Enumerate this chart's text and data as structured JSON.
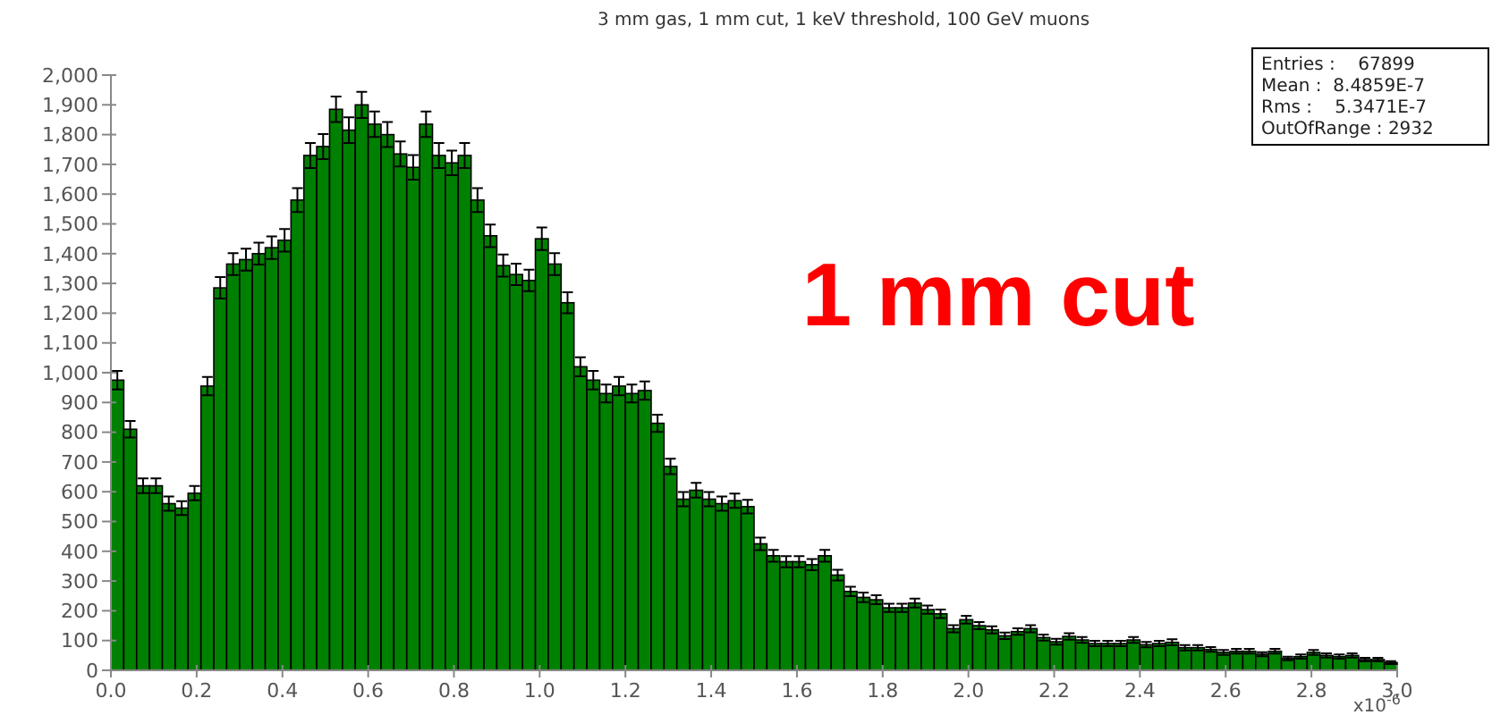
{
  "chart_data": {
    "type": "histogram",
    "title": "3 mm gas, 1 mm cut, 1 keV threshold, 100 GeV muons",
    "xlabel": "x10$^{-6}$",
    "annotations": [
      "1 mm cut",
      "Entries :    67899",
      "Mean :  8.4859E-7",
      "Rms :    5.3471E-7",
      "OutOfRange : 2932"
    ],
    "color": "#008000",
    "bins": [
      0,
      0.03,
      0.06,
      0.09,
      0.12,
      0.15,
      0.18,
      0.21,
      0.24,
      0.27,
      0.3,
      0.33,
      0.36,
      0.39,
      0.42,
      0.45,
      0.48,
      0.51,
      0.54,
      0.57,
      0.6,
      0.63,
      0.66,
      0.69,
      0.72,
      0.75,
      0.78,
      0.81,
      0.84,
      0.87,
      0.9,
      0.93,
      0.96,
      0.99,
      1.02,
      1.05,
      1.08,
      1.11,
      1.14,
      1.17,
      1.2,
      1.23,
      1.26,
      1.29,
      1.32,
      1.35,
      1.38,
      1.41,
      1.44,
      1.47,
      1.5,
      1.53,
      1.56,
      1.59,
      1.62,
      1.65,
      1.68,
      1.71,
      1.74,
      1.77,
      1.8,
      1.83,
      1.86,
      1.89,
      1.92,
      1.95,
      1.98,
      2.01,
      2.04,
      2.07,
      2.1,
      2.13,
      2.16,
      2.19,
      2.22,
      2.25,
      2.28,
      2.31,
      2.34,
      2.37,
      2.4,
      2.43,
      2.46,
      2.49,
      2.52,
      2.55,
      2.58,
      2.61,
      2.64,
      2.67,
      2.7,
      2.73,
      2.76,
      2.79,
      2.82,
      2.85,
      2.88,
      2.91,
      2.94,
      2.97,
      3.0
    ],
    "values": [
      975,
      810,
      620,
      620,
      560,
      545,
      595,
      955,
      1285,
      1365,
      1380,
      1400,
      1420,
      1445,
      1580,
      1730,
      1760,
      1885,
      1815,
      1900,
      1835,
      1800,
      1735,
      1690,
      1835,
      1730,
      1705,
      1730,
      1580,
      1460,
      1360,
      1330,
      1310,
      1450,
      1365,
      1235,
      1020,
      975,
      930,
      955,
      930,
      940,
      830,
      685,
      575,
      605,
      575,
      560,
      570,
      550,
      425,
      385,
      365,
      365,
      355,
      385,
      320,
      265,
      245,
      237,
      210,
      210,
      226,
      204,
      190,
      140,
      170,
      150,
      136,
      116,
      130,
      140,
      110,
      96,
      114,
      102,
      90,
      90,
      90,
      102,
      86,
      90,
      94,
      76,
      76,
      70,
      60,
      64,
      64,
      54,
      64,
      40,
      46,
      60,
      50,
      46,
      50,
      36,
      36,
      26
    ],
    "errors": [
      31,
      28,
      25,
      25,
      24,
      23,
      24,
      31,
      36,
      37,
      37,
      37,
      38,
      38,
      40,
      42,
      42,
      43,
      43,
      44,
      43,
      42,
      42,
      41,
      43,
      42,
      41,
      42,
      40,
      38,
      37,
      36,
      36,
      38,
      37,
      35,
      32,
      31,
      30,
      31,
      30,
      31,
      29,
      26,
      24,
      25,
      24,
      24,
      24,
      23,
      21,
      20,
      19,
      19,
      19,
      20,
      18,
      16,
      16,
      15,
      14,
      14,
      15,
      14,
      14,
      12,
      13,
      12,
      12,
      11,
      11,
      12,
      10,
      10,
      11,
      10,
      9,
      9,
      9,
      10,
      9,
      9,
      10,
      9,
      9,
      8,
      8,
      8,
      8,
      7,
      8,
      6,
      7,
      8,
      7,
      7,
      7,
      6,
      6,
      5
    ],
    "xlim": [
      0,
      3.0
    ],
    "xticks": [
      {
        "value": 0,
        "label": "0.0"
      },
      {
        "value": 0.2,
        "label": "0.2"
      },
      {
        "value": 0.4,
        "label": "0.4"
      },
      {
        "value": 0.6,
        "label": "0.6"
      },
      {
        "value": 0.8,
        "label": "0.8"
      },
      {
        "value": 1.0,
        "label": "1.0"
      },
      {
        "value": 1.2,
        "label": "1.2"
      },
      {
        "value": 1.4,
        "label": "1.4"
      },
      {
        "value": 1.6,
        "label": "1.6"
      },
      {
        "value": 1.8,
        "label": "1.8"
      },
      {
        "value": 2.0,
        "label": "2.0"
      },
      {
        "value": 2.2,
        "label": "2.2"
      },
      {
        "value": 2.4,
        "label": "2.4"
      },
      {
        "value": 2.6,
        "label": "2.6"
      },
      {
        "value": 2.8,
        "label": "2.8"
      },
      {
        "value": 3.0,
        "label": "3.0"
      }
    ],
    "ylim": [
      0,
      2000
    ],
    "yticks": [
      0,
      100,
      200,
      300,
      400,
      500,
      600,
      700,
      800,
      900,
      {
        "value": 1000,
        "label": "1,000"
      },
      {
        "value": 1100,
        "label": "1,100"
      },
      {
        "value": 1200,
        "label": "1,200"
      },
      {
        "value": 1300,
        "label": "1,300"
      },
      {
        "value": 1400,
        "label": "1,400"
      },
      {
        "value": 1500,
        "label": "1,500"
      },
      {
        "value": 1600,
        "label": "1,600"
      },
      {
        "value": 1700,
        "label": "1,700"
      },
      {
        "value": 1800,
        "label": "1,800"
      },
      {
        "value": 1900,
        "label": "1,900"
      },
      {
        "value": 2000,
        "label": "2,000"
      }
    ],
    "grid": false
  }
}
